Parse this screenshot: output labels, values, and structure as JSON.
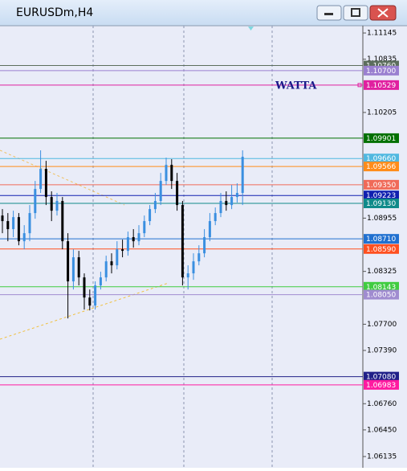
{
  "chart_data": {
    "type": "candlestick",
    "title": "EURUSDm,H4",
    "annotation": "WATTA",
    "ylim": [
      1.06021,
      1.11231
    ],
    "yticks": [
      1.11145,
      1.10835,
      1.10205,
      1.08955,
      1.08325,
      {
        "value": 1.077,
        "label": "1.07700"
      },
      {
        "value": 1.0739,
        "label": "1.07390"
      },
      {
        "value": 1.0676,
        "label": "1.06760"
      },
      {
        "value": 1.0645,
        "label": "1.06450"
      },
      1.06135
    ],
    "up_color": "#3a8fe0",
    "down_color": "#000000",
    "ohlc": [
      [
        1.08986,
        1.09062,
        1.08777,
        1.0892
      ],
      [
        1.0892,
        1.09015,
        1.08682,
        1.08825
      ],
      [
        1.08825,
        1.09043,
        1.0873,
        1.08967
      ],
      [
        1.08967,
        1.09015,
        1.08634,
        1.08682
      ],
      [
        1.08682,
        1.08872,
        1.08587,
        1.08777
      ],
      [
        1.08777,
        1.0911,
        1.08682,
        1.09015
      ],
      [
        1.09015,
        1.09395,
        1.08948,
        1.093
      ],
      [
        1.093,
        1.09757,
        1.09253,
        1.09538
      ],
      [
        1.09538,
        1.09633,
        1.0911,
        1.09205
      ],
      [
        1.09205,
        1.09272,
        1.0892,
        1.09043
      ],
      [
        1.09043,
        1.09253,
        1.08986,
        1.09158
      ],
      [
        1.09158,
        1.09205,
        1.08587,
        1.08682
      ],
      [
        1.08682,
        1.08777,
        1.07769,
        1.08207
      ],
      [
        1.08207,
        1.08587,
        1.08111,
        1.08492
      ],
      [
        1.08492,
        1.08568,
        1.08159,
        1.08254
      ],
      [
        1.08254,
        1.08302,
        1.07874,
        1.08016
      ],
      [
        1.08016,
        1.08111,
        1.07864,
        1.07921
      ],
      [
        1.07921,
        1.08207,
        1.07874,
        1.08159
      ],
      [
        1.08159,
        1.08321,
        1.08111,
        1.08254
      ],
      [
        1.08254,
        1.08511,
        1.08207,
        1.08444
      ],
      [
        1.08444,
        1.08539,
        1.08302,
        1.08397
      ],
      [
        1.08397,
        1.08682,
        1.08349,
        1.08587
      ],
      [
        1.08587,
        1.08701,
        1.08492,
        1.08568
      ],
      [
        1.08568,
        1.08796,
        1.08511,
        1.0873
      ],
      [
        1.0873,
        1.08825,
        1.08606,
        1.08682
      ],
      [
        1.08682,
        1.08872,
        1.08634,
        1.08777
      ],
      [
        1.08777,
        1.08986,
        1.0873,
        1.0892
      ],
      [
        1.0892,
        1.0911,
        1.08872,
        1.09062
      ],
      [
        1.09062,
        1.09253,
        1.09015,
        1.09158
      ],
      [
        1.09158,
        1.0949,
        1.0911,
        1.09395
      ],
      [
        1.09395,
        1.09671,
        1.09348,
        1.09585
      ],
      [
        1.09585,
        1.09652,
        1.093,
        1.09395
      ],
      [
        1.09395,
        1.0949,
        1.09043,
        1.0911
      ],
      [
        1.0911,
        1.09158,
        1.08159,
        1.08254
      ],
      [
        1.08254,
        1.08397,
        1.08111,
        1.08302
      ],
      [
        1.08302,
        1.08539,
        1.08226,
        1.08444
      ],
      [
        1.08444,
        1.08634,
        1.08397,
        1.08539
      ],
      [
        1.08539,
        1.08825,
        1.08492,
        1.0873
      ],
      [
        1.0873,
        1.09015,
        1.08682,
        1.0892
      ],
      [
        1.0892,
        1.09081,
        1.08872,
        1.09015
      ],
      [
        1.09015,
        1.09253,
        1.08967,
        1.09158
      ],
      [
        1.09158,
        1.09272,
        1.09043,
        1.0911
      ],
      [
        1.0911,
        1.09348,
        1.09062,
        1.09205
      ],
      [
        1.09205,
        1.09367,
        1.09139,
        1.09253
      ],
      [
        1.09253,
        1.09757,
        1.0911,
        1.09681
      ]
    ],
    "levels": [
      {
        "value": 1.1076,
        "label": "1.10760",
        "color": "#5c6e5c"
      },
      {
        "value": 1.107,
        "label": "1.10700",
        "color": "#9a80d0"
      },
      {
        "value": 1.10529,
        "color": "#e020a0"
      },
      {
        "value": 1.09901,
        "color": "#007000"
      },
      {
        "value": 1.0966,
        "label": "1.09660",
        "color": "#50b8e0"
      },
      {
        "value": 1.09566,
        "color": "#ff8c1a"
      },
      {
        "value": 1.0935,
        "label": "1.09350",
        "color": "#f06a58"
      },
      {
        "value": 1.09223,
        "color": "#1020b0"
      },
      {
        "value": 1.0913,
        "label": "1.09130",
        "color": "#108a8a"
      },
      {
        "value": 1.0871,
        "label": "1.08710",
        "color": "#2070d0"
      },
      {
        "value": 1.0859,
        "label": "1.08590",
        "color": "#ff5020"
      },
      {
        "value": 1.08143,
        "color": "#40cc40"
      },
      {
        "value": 1.0805,
        "label": "1.08050",
        "color": "#a08cd0"
      },
      {
        "value": 1.0708,
        "label": "1.07080",
        "color": "#202088"
      },
      {
        "value": 1.06983,
        "color": "#ff1aa0"
      }
    ]
  }
}
